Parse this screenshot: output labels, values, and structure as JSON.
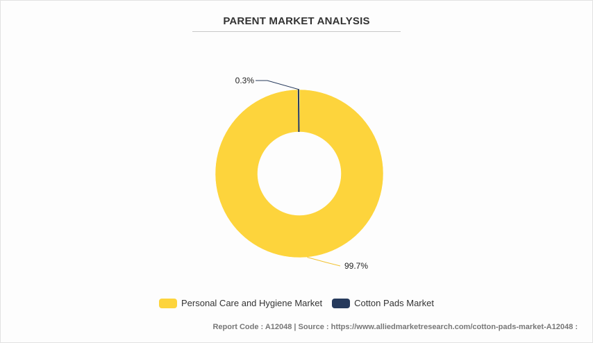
{
  "chart_data": {
    "type": "pie",
    "donut": true,
    "title": "PARENT MARKET ANALYSIS",
    "slices": [
      {
        "name": "Personal Care and Hygiene Market",
        "value": 99.7,
        "label": "99.7%",
        "color": "#fdd43c"
      },
      {
        "name": "Cotton Pads Market",
        "value": 0.3,
        "label": "0.3%",
        "color": "#263a5c"
      }
    ],
    "legend_position": "bottom"
  },
  "footer": {
    "text": "Report Code : A12048  |  Source : https://www.alliedmarketresearch.com/cotton-pads-market-A12048 :"
  }
}
